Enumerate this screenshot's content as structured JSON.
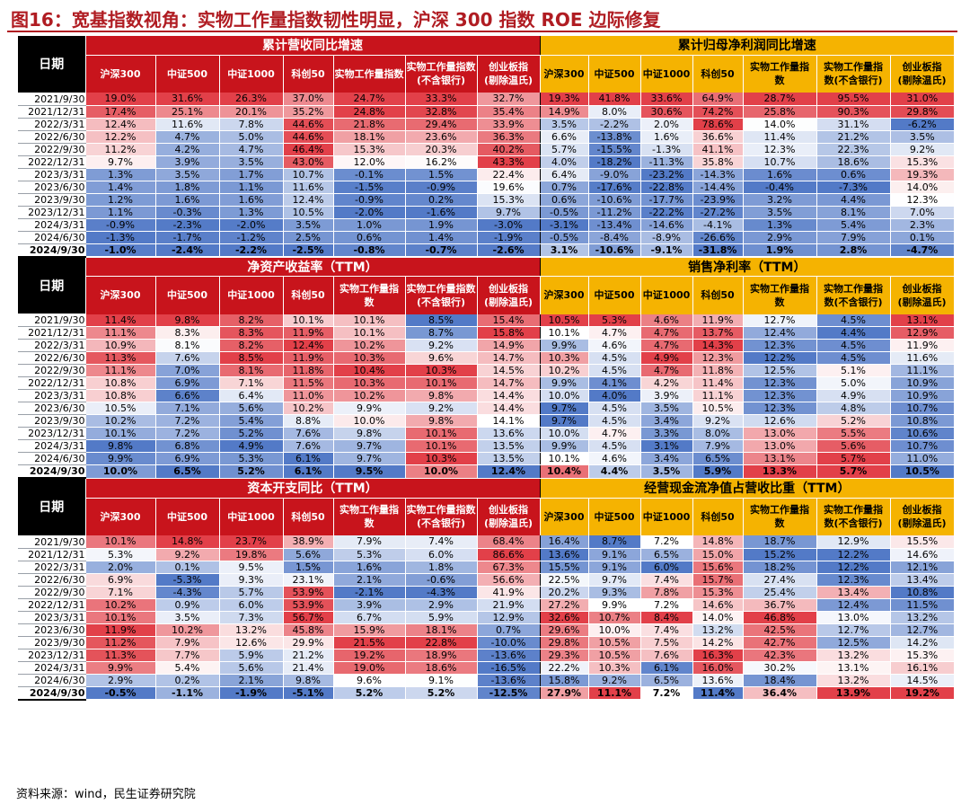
{
  "title": "图16：宽基指数视角：实物工作量指数韧性明显，沪深 300 指数 ROE 边际修复",
  "source": "资料来源：wind，民生证券研究院",
  "date_header": "日期",
  "colors": {
    "red_header": "#c8141c",
    "gold_header": "#f5b301",
    "high": "#e0363f",
    "low": "#4a73c4",
    "mid": "#ffffff"
  },
  "columns": [
    "沪深300",
    "中证500",
    "中证1000",
    "科创50",
    "实物工作量指数",
    "实物工作量指数(不含银行)",
    "创业板指(剔除温氏)"
  ],
  "dates": [
    "2021/9/30",
    "2021/12/31",
    "2022/3/31",
    "2022/6/30",
    "2022/9/30",
    "2022/12/31",
    "2023/3/31",
    "2023/6/30",
    "2023/9/30",
    "2023/12/31",
    "2024/3/31",
    "2024/6/30",
    "2024/9/30"
  ],
  "chart_data": {
    "type": "table",
    "blocks": [
      {
        "left": {
          "title": "累计营收同比增速",
          "columns": [
            "沪深300",
            "中证500",
            "中证1000",
            "科创50",
            "实物工作量指数",
            "实物工作量指数\n(不含银行)",
            "创业板指\n(剔除温氏)"
          ],
          "rows": [
            [
              "19.0%",
              "31.6%",
              "26.3%",
              "37.0%",
              "24.7%",
              "33.3%",
              "32.7%"
            ],
            [
              "17.4%",
              "25.1%",
              "20.1%",
              "35.2%",
              "24.8%",
              "32.8%",
              "35.4%"
            ],
            [
              "12.4%",
              "11.6%",
              "7.8%",
              "44.6%",
              "21.8%",
              "29.4%",
              "33.9%"
            ],
            [
              "12.2%",
              "4.7%",
              "5.0%",
              "44.6%",
              "18.1%",
              "23.6%",
              "36.3%"
            ],
            [
              "11.2%",
              "4.2%",
              "4.7%",
              "46.4%",
              "15.3%",
              "20.3%",
              "40.2%"
            ],
            [
              "9.7%",
              "3.9%",
              "3.5%",
              "43.0%",
              "12.0%",
              "16.2%",
              "43.3%"
            ],
            [
              "1.3%",
              "3.5%",
              "1.7%",
              "10.7%",
              "-0.1%",
              "1.5%",
              "22.4%"
            ],
            [
              "1.4%",
              "1.8%",
              "1.1%",
              "11.6%",
              "-1.5%",
              "-0.9%",
              "19.6%"
            ],
            [
              "1.2%",
              "1.6%",
              "1.6%",
              "12.4%",
              "-0.9%",
              "0.2%",
              "15.3%"
            ],
            [
              "1.1%",
              "-0.3%",
              "1.3%",
              "10.5%",
              "-2.0%",
              "-1.6%",
              "9.7%"
            ],
            [
              "-0.9%",
              "-2.3%",
              "-2.0%",
              "3.5%",
              "1.0%",
              "1.9%",
              "-3.0%"
            ],
            [
              "-1.3%",
              "-1.7%",
              "-1.2%",
              "2.5%",
              "0.6%",
              "1.4%",
              "-1.9%"
            ],
            [
              "-1.0%",
              "-2.4%",
              "-2.2%",
              "-2.5%",
              "-0.8%",
              "-0.7%",
              "-2.6%"
            ]
          ]
        },
        "right": {
          "title": "累计归母净利润同比增速",
          "columns": [
            "沪深300",
            "中证500",
            "中证1000",
            "科创50",
            "实物工作量指\n数",
            "实物工作量指\n数(不含银行)",
            "创业板指\n(剔除温氏)"
          ],
          "rows": [
            [
              "19.3%",
              "41.8%",
              "33.6%",
              "64.9%",
              "28.7%",
              "95.5%",
              "31.0%"
            ],
            [
              "14.9%",
              "8.0%",
              "30.6%",
              "74.2%",
              "25.8%",
              "90.3%",
              "29.8%"
            ],
            [
              "3.5%",
              "-2.2%",
              "2.0%",
              "78.6%",
              "14.0%",
              "31.1%",
              "-6.2%"
            ],
            [
              "6.6%",
              "-13.8%",
              "1.6%",
              "36.6%",
              "11.4%",
              "21.2%",
              "3.5%"
            ],
            [
              "5.7%",
              "-15.5%",
              "-1.3%",
              "41.1%",
              "12.3%",
              "22.3%",
              "9.2%"
            ],
            [
              "4.0%",
              "-18.2%",
              "-11.3%",
              "35.8%",
              "10.7%",
              "18.6%",
              "15.3%"
            ],
            [
              "6.4%",
              "-9.0%",
              "-23.2%",
              "-14.3%",
              "1.6%",
              "0.6%",
              "19.3%"
            ],
            [
              "0.7%",
              "-17.6%",
              "-22.8%",
              "-14.4%",
              "-0.4%",
              "-7.3%",
              "14.0%"
            ],
            [
              "0.6%",
              "-10.6%",
              "-17.7%",
              "-23.9%",
              "3.2%",
              "4.4%",
              "12.3%"
            ],
            [
              "-0.5%",
              "-11.2%",
              "-22.2%",
              "-27.2%",
              "3.5%",
              "8.1%",
              "7.0%"
            ],
            [
              "-3.1%",
              "-13.4%",
              "-14.6%",
              "-4.1%",
              "1.3%",
              "5.4%",
              "2.3%"
            ],
            [
              "-0.5%",
              "-8.4%",
              "-8.9%",
              "-26.6%",
              "2.9%",
              "7.9%",
              "0.1%"
            ],
            [
              "3.1%",
              "-10.6%",
              "-9.1%",
              "-31.8%",
              "1.9%",
              "2.8%",
              "-4.7%"
            ]
          ]
        }
      },
      {
        "left": {
          "title": "净资产收益率（TTM）",
          "columns": [
            "沪深300",
            "中证500",
            "中证1000",
            "科创50",
            "实物工作量指\n数",
            "实物工作量指数\n(不含银行)",
            "创业板指\n(剔除温氏)"
          ],
          "rows": [
            [
              "11.4%",
              "9.8%",
              "8.2%",
              "10.1%",
              "10.1%",
              "8.5%",
              "15.4%"
            ],
            [
              "11.1%",
              "8.3%",
              "8.3%",
              "11.9%",
              "10.1%",
              "8.7%",
              "15.8%"
            ],
            [
              "10.9%",
              "8.1%",
              "8.2%",
              "12.4%",
              "10.2%",
              "9.2%",
              "14.9%"
            ],
            [
              "11.3%",
              "7.6%",
              "8.5%",
              "11.9%",
              "10.3%",
              "9.6%",
              "14.7%"
            ],
            [
              "11.1%",
              "7.0%",
              "8.1%",
              "11.8%",
              "10.4%",
              "10.3%",
              "14.5%"
            ],
            [
              "10.8%",
              "6.9%",
              "7.1%",
              "11.5%",
              "10.3%",
              "10.1%",
              "14.7%"
            ],
            [
              "10.8%",
              "6.6%",
              "6.4%",
              "11.0%",
              "10.2%",
              "9.8%",
              "14.4%"
            ],
            [
              "10.5%",
              "7.1%",
              "5.6%",
              "10.2%",
              "9.9%",
              "9.2%",
              "14.4%"
            ],
            [
              "10.2%",
              "7.2%",
              "5.4%",
              "8.8%",
              "10.0%",
              "9.8%",
              "14.1%"
            ],
            [
              "10.1%",
              "7.2%",
              "5.2%",
              "7.6%",
              "9.8%",
              "10.1%",
              "13.6%"
            ],
            [
              "9.8%",
              "6.8%",
              "4.9%",
              "7.6%",
              "9.7%",
              "10.1%",
              "13.5%"
            ],
            [
              "9.9%",
              "6.9%",
              "5.3%",
              "6.1%",
              "9.7%",
              "10.3%",
              "13.5%"
            ],
            [
              "10.0%",
              "6.5%",
              "5.2%",
              "6.1%",
              "9.5%",
              "10.0%",
              "12.4%"
            ]
          ]
        },
        "right": {
          "title": "销售净利率（TTM）",
          "columns": [
            "沪深300",
            "中证500",
            "中证1000",
            "科创50",
            "实物工作量指\n数",
            "实物工作量指\n数(不含银行)",
            "创业板指\n(剔除温氏)"
          ],
          "rows": [
            [
              "10.5%",
              "5.3%",
              "4.6%",
              "11.9%",
              "12.7%",
              "4.5%",
              "13.1%"
            ],
            [
              "10.1%",
              "4.7%",
              "4.7%",
              "13.7%",
              "12.4%",
              "4.4%",
              "12.9%"
            ],
            [
              "9.9%",
              "4.6%",
              "4.7%",
              "14.3%",
              "12.3%",
              "4.5%",
              "11.9%"
            ],
            [
              "10.3%",
              "4.5%",
              "4.9%",
              "12.3%",
              "12.2%",
              "4.5%",
              "11.6%"
            ],
            [
              "10.2%",
              "4.5%",
              "4.7%",
              "11.8%",
              "12.5%",
              "5.1%",
              "11.1%"
            ],
            [
              "9.9%",
              "4.1%",
              "4.2%",
              "11.4%",
              "12.3%",
              "5.0%",
              "10.9%"
            ],
            [
              "10.0%",
              "4.0%",
              "3.9%",
              "11.1%",
              "12.3%",
              "4.9%",
              "10.9%"
            ],
            [
              "9.7%",
              "4.5%",
              "3.5%",
              "10.5%",
              "12.3%",
              "4.8%",
              "10.7%"
            ],
            [
              "9.7%",
              "4.5%",
              "3.4%",
              "9.2%",
              "12.6%",
              "5.2%",
              "10.8%"
            ],
            [
              "10.0%",
              "4.7%",
              "3.3%",
              "8.0%",
              "13.0%",
              "5.5%",
              "10.6%"
            ],
            [
              "9.9%",
              "4.5%",
              "3.1%",
              "7.9%",
              "13.0%",
              "5.6%",
              "10.7%"
            ],
            [
              "10.1%",
              "4.6%",
              "3.4%",
              "6.5%",
              "13.1%",
              "5.7%",
              "11.0%"
            ],
            [
              "10.4%",
              "4.4%",
              "3.5%",
              "5.9%",
              "13.3%",
              "5.7%",
              "10.5%"
            ]
          ]
        }
      },
      {
        "left": {
          "title": "资本开支同比（TTM）",
          "columns": [
            "沪深300",
            "中证500",
            "中证1000",
            "科创50",
            "实物工作量指\n数",
            "实物工作量指数\n(不含银行)",
            "创业板指\n(剔除温氏)"
          ],
          "rows": [
            [
              "10.1%",
              "14.8%",
              "23.7%",
              "38.9%",
              "7.9%",
              "7.4%",
              "68.4%"
            ],
            [
              "5.3%",
              "9.2%",
              "19.8%",
              "5.6%",
              "5.3%",
              "6.0%",
              "86.6%"
            ],
            [
              "2.0%",
              "0.1%",
              "9.5%",
              "1.5%",
              "1.6%",
              "1.8%",
              "67.3%"
            ],
            [
              "6.9%",
              "-5.3%",
              "9.3%",
              "23.1%",
              "2.1%",
              "-0.6%",
              "56.6%"
            ],
            [
              "7.1%",
              "-4.3%",
              "5.7%",
              "53.9%",
              "-2.1%",
              "-4.3%",
              "41.9%"
            ],
            [
              "10.2%",
              "0.9%",
              "6.0%",
              "53.9%",
              "3.9%",
              "2.9%",
              "21.9%"
            ],
            [
              "10.1%",
              "3.5%",
              "7.3%",
              "56.7%",
              "6.7%",
              "5.9%",
              "12.9%"
            ],
            [
              "11.9%",
              "10.2%",
              "13.2%",
              "45.8%",
              "15.9%",
              "18.1%",
              "0.7%"
            ],
            [
              "11.2%",
              "7.9%",
              "12.6%",
              "29.9%",
              "21.5%",
              "22.8%",
              "-10.0%"
            ],
            [
              "11.3%",
              "7.7%",
              "5.9%",
              "21.2%",
              "19.2%",
              "18.9%",
              "-13.6%"
            ],
            [
              "9.9%",
              "5.4%",
              "5.6%",
              "21.4%",
              "19.0%",
              "18.6%",
              "-16.5%"
            ],
            [
              "2.9%",
              "0.2%",
              "2.1%",
              "9.8%",
              "9.6%",
              "9.1%",
              "-13.6%"
            ],
            [
              "-0.5%",
              "-1.1%",
              "-1.9%",
              "-5.1%",
              "5.2%",
              "5.2%",
              "-12.5%"
            ]
          ]
        },
        "right": {
          "title": "经营现金流净值占营收比重（TTM）",
          "columns": [
            "沪深300",
            "中证500",
            "中证1000",
            "科创50",
            "实物工作量指\n数",
            "实物工作量指\n数(不含银行)",
            "创业板指\n(剔除温氏)"
          ],
          "rows": [
            [
              "16.4%",
              "8.7%",
              "7.2%",
              "14.8%",
              "18.7%",
              "12.9%",
              "15.5%"
            ],
            [
              "13.6%",
              "9.1%",
              "6.5%",
              "15.0%",
              "15.2%",
              "12.2%",
              "14.6%"
            ],
            [
              "15.5%",
              "9.1%",
              "6.0%",
              "15.6%",
              "18.2%",
              "12.2%",
              "12.1%"
            ],
            [
              "22.5%",
              "9.7%",
              "7.4%",
              "15.7%",
              "27.4%",
              "12.3%",
              "13.4%"
            ],
            [
              "20.2%",
              "9.3%",
              "7.8%",
              "15.3%",
              "25.4%",
              "13.4%",
              "10.8%"
            ],
            [
              "27.2%",
              "9.9%",
              "7.2%",
              "14.6%",
              "36.7%",
              "12.4%",
              "11.5%"
            ],
            [
              "32.6%",
              "10.7%",
              "8.4%",
              "14.0%",
              "46.8%",
              "13.0%",
              "13.2%"
            ],
            [
              "29.6%",
              "10.0%",
              "7.4%",
              "13.2%",
              "42.5%",
              "12.7%",
              "12.7%"
            ],
            [
              "29.8%",
              "10.5%",
              "7.5%",
              "14.2%",
              "42.7%",
              "12.5%",
              "14.2%"
            ],
            [
              "29.3%",
              "10.5%",
              "7.6%",
              "16.3%",
              "42.3%",
              "13.2%",
              "15.3%"
            ],
            [
              "22.2%",
              "10.3%",
              "6.1%",
              "16.0%",
              "30.2%",
              "13.1%",
              "16.1%"
            ],
            [
              "15.8%",
              "9.2%",
              "6.5%",
              "13.6%",
              "18.4%",
              "13.2%",
              "14.5%"
            ],
            [
              "27.9%",
              "11.1%",
              "7.2%",
              "11.4%",
              "36.4%",
              "13.9%",
              "19.2%"
            ]
          ]
        }
      }
    ]
  }
}
